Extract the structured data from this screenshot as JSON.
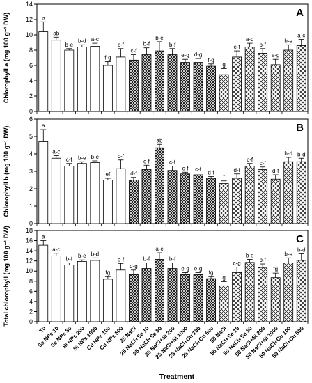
{
  "chart_data": {
    "type": "bar",
    "xlabel": "Treatment",
    "categories": [
      "T0",
      "Se NPs 10",
      "Se NPs 50",
      "Si NPs 200",
      "Si NPs 1000",
      "Cu NPs 100",
      "Cu NPs 500",
      "25 NaCl",
      "25 NaCl+Se 10",
      "25 NaCl+Se 50",
      "25 NaCl+Si 200",
      "25 NaCl+Si 1000",
      "25 NaCl+Cu 100",
      "25 NaCl+Cu 500",
      "50 NaCl",
      "50 NaCl+Se 10",
      "50 NaCl+Se 50",
      "50 NaCl+Si 200",
      "50 NaCl+Si 1000",
      "50 NaCl+Cu 100",
      "50 NaCl+Cu 500"
    ],
    "group_patterns": [
      "white",
      "white",
      "white",
      "white",
      "white",
      "white",
      "white",
      "crosshatch-dark",
      "crosshatch-dark",
      "crosshatch-dark",
      "crosshatch-dark",
      "crosshatch-dark",
      "crosshatch-dark",
      "crosshatch-dark",
      "crosshatch-light",
      "crosshatch-light",
      "crosshatch-light",
      "crosshatch-light",
      "crosshatch-light",
      "crosshatch-light",
      "crosshatch-light"
    ],
    "panels": [
      {
        "panel_label": "A",
        "ylabel": "Chlorophyll a (mg 100 g⁻¹ DW)",
        "ylim": [
          0,
          14
        ],
        "yticks": [
          0,
          2,
          4,
          6,
          8,
          10,
          12,
          14
        ],
        "values": [
          10.4,
          9.3,
          8.0,
          8.4,
          8.5,
          6.0,
          7.1,
          6.7,
          7.4,
          7.9,
          7.4,
          6.4,
          6.4,
          5.9,
          4.8,
          7.1,
          8.4,
          7.6,
          6.1,
          8.0,
          8.6
        ],
        "errors": [
          1.3,
          0.4,
          0.2,
          0.3,
          0.4,
          0.5,
          1.1,
          0.7,
          0.9,
          1.2,
          0.8,
          0.4,
          0.5,
          0.3,
          0.8,
          0.8,
          0.5,
          0.6,
          0.7,
          0.7,
          0.8
        ],
        "letters": [
          "a",
          "ab",
          "b-e",
          "b-d",
          "a-c",
          "f-g",
          "c-f",
          "c-f",
          "b-f",
          "b-e",
          "b-f",
          "e-g",
          "d-g",
          "f-g",
          "g",
          "c-f",
          "a-d",
          "b-f",
          "e-g",
          "b-e",
          "a-c"
        ]
      },
      {
        "panel_label": "B",
        "ylabel": "Chlorophyll b (mg 100 g⁻¹ DW)",
        "ylim": [
          0,
          6
        ],
        "yticks": [
          0,
          1,
          2,
          3,
          4,
          5,
          6
        ],
        "values": [
          4.7,
          3.75,
          3.3,
          3.45,
          3.5,
          2.5,
          3.15,
          2.5,
          3.1,
          4.35,
          3.05,
          2.85,
          2.8,
          2.6,
          2.3,
          2.6,
          3.3,
          3.1,
          2.55,
          3.55,
          3.55
        ],
        "errors": [
          0.7,
          0.15,
          0.15,
          0.1,
          0.1,
          0.1,
          0.5,
          0.15,
          0.25,
          0.2,
          0.25,
          0.1,
          0.1,
          0.1,
          0.15,
          0.25,
          0.15,
          0.15,
          0.25,
          0.25,
          0.2
        ],
        "letters": [
          "a",
          "a-c",
          "c-f",
          "b-e",
          "b-e",
          "ef",
          "c-f",
          "d-f",
          "c-f",
          "ab",
          "c-f",
          "c-f",
          "c-f",
          "d-f",
          "f",
          "d-f",
          "c-f",
          "c-f",
          "d-f",
          "b-d",
          "b-d"
        ]
      },
      {
        "panel_label": "C",
        "ylabel": "Total chlorophyll (mg 100 g⁻¹ DW)",
        "ylim": [
          0,
          18
        ],
        "yticks": [
          0,
          2,
          4,
          6,
          8,
          10,
          12,
          14,
          16,
          18
        ],
        "values": [
          15.1,
          13.0,
          11.2,
          11.9,
          12.1,
          8.4,
          10.2,
          9.3,
          10.5,
          12.3,
          10.5,
          9.3,
          9.3,
          8.5,
          7.1,
          9.7,
          11.7,
          10.7,
          8.7,
          11.6,
          12.1
        ],
        "errors": [
          0.9,
          0.5,
          0.4,
          0.3,
          0.5,
          0.5,
          1.3,
          0.9,
          1.1,
          1.3,
          1.1,
          0.4,
          0.4,
          0.4,
          0.8,
          1.1,
          0.6,
          0.7,
          0.9,
          1.0,
          1.3
        ],
        "letters": [
          "a",
          "a-c",
          "b-f",
          "b-e",
          "b-d",
          "fg",
          "b-f",
          "d-g",
          "b-f",
          "a-c",
          "b-f",
          "e-g",
          "e-g",
          "fg",
          "g",
          "c-g",
          "b-e",
          "b-f",
          "fg",
          "b-e",
          "b-d"
        ]
      }
    ]
  }
}
